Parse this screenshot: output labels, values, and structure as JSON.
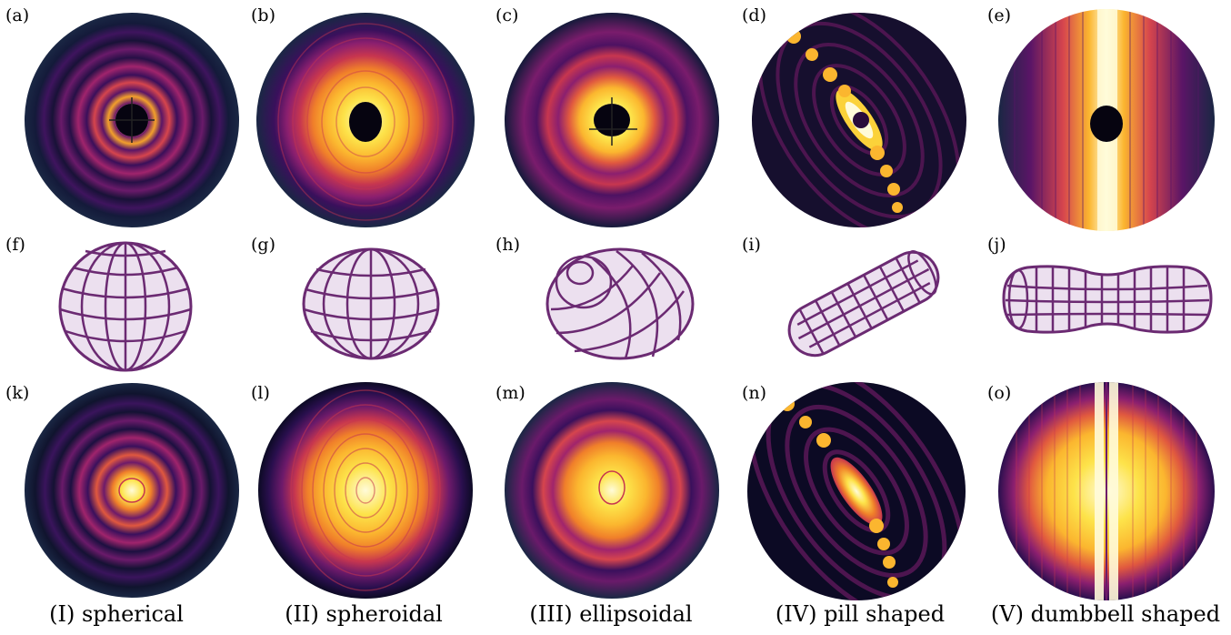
{
  "figure": {
    "row_top_labels": [
      "(a)",
      "(b)",
      "(c)",
      "(d)",
      "(e)"
    ],
    "row_mid_labels": [
      "(f)",
      "(g)",
      "(h)",
      "(i)",
      "(j)"
    ],
    "row_bottom_labels": [
      "(k)",
      "(l)",
      "(m)",
      "(n)",
      "(o)"
    ],
    "captions": [
      "(I) spherical",
      "(II) spheroidal",
      "(III) ellipsoidal",
      "(IV) pill shaped",
      "(V) dumbbell shaped"
    ],
    "colors": {
      "shape_stroke": "#6b2a72",
      "shape_fill": "#ece0ef",
      "pattern_dark": "#0c0a24",
      "pattern_mid": "#8b1f6f",
      "pattern_bright": "#fbd23a",
      "pattern_peak": "#fffbd9"
    }
  }
}
